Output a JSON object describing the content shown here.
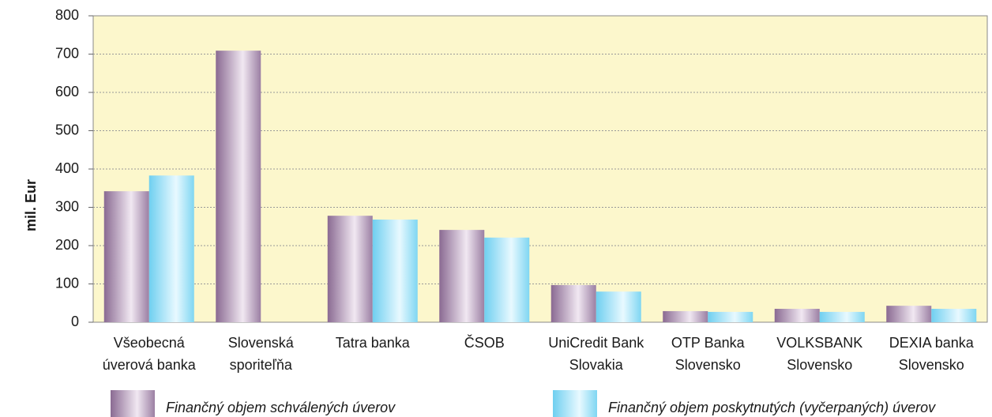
{
  "chart_data": {
    "type": "bar",
    "y_label": "mil. Eur",
    "categories": [
      "Všeobecná\núverová banka",
      "Slovenská\nsporiteľňa",
      "Tatra banka",
      "ČSOB",
      "UniCredit Bank\nSlovakia",
      "OTP Banka\nSlovensko",
      "VOLKSBANK\nSlovensko",
      "DEXIA banka\nSlovensko"
    ],
    "series": [
      {
        "name": "Finančný objem schválených úverov",
        "color": "#9b7fa3",
        "values": [
          342,
          709,
          278,
          241,
          97,
          29,
          35,
          43
        ]
      },
      {
        "name": "Finančný objem poskytnutých (vyčerpaných) úverov",
        "color": "#7fd6f2",
        "values": [
          383,
          null,
          268,
          221,
          80,
          27,
          27,
          35
        ]
      }
    ],
    "ylim": [
      0,
      800
    ],
    "yticks": [
      0,
      100,
      200,
      300,
      400,
      500,
      600,
      700,
      800
    ],
    "grid": true
  }
}
